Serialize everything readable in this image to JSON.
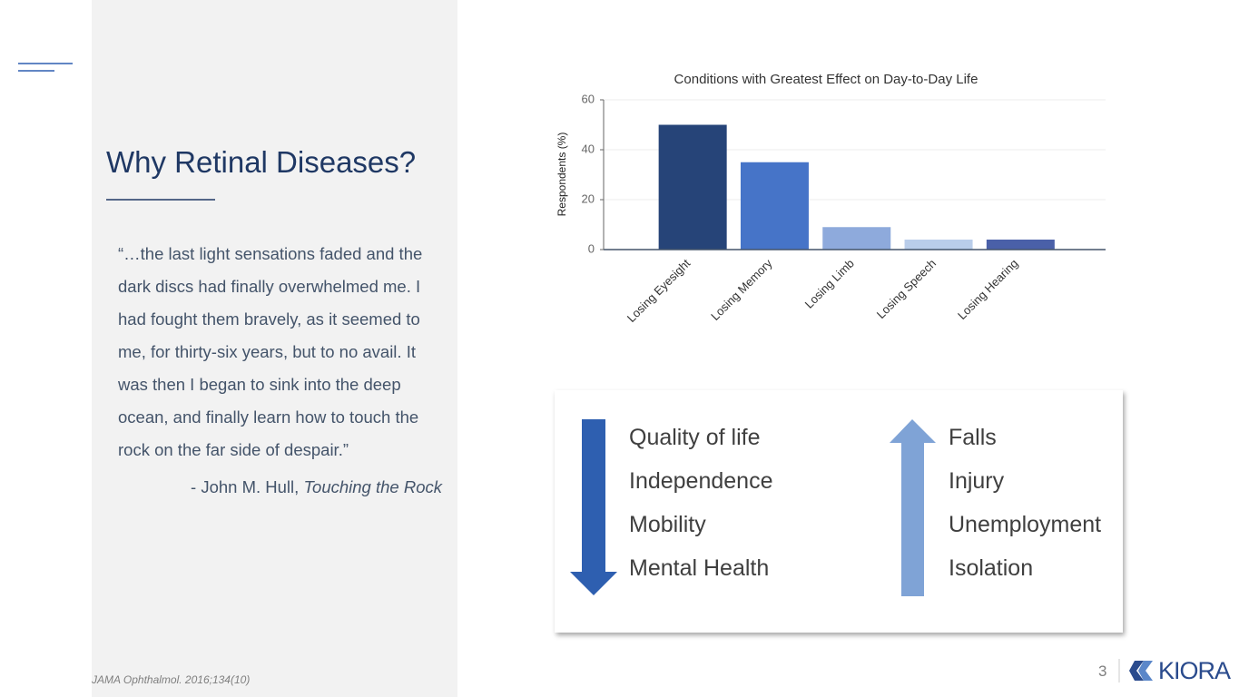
{
  "title": "Why Retinal Diseases?",
  "quote": "“…the last light sensations faded and the dark discs had finally overwhelmed me. I had fought them bravely, as it seemed to me, for thirty-six years, but to no avail. It was then I began to sink into the deep ocean, and finally learn how to touch the rock on the far side of despair.”",
  "attribution": {
    "author": "- John M. Hull, ",
    "book": "Touching the Rock"
  },
  "chart_data": {
    "type": "bar",
    "title": "Conditions with Greatest Effect on Day-to-Day Life",
    "y_label": "Respondents (%)",
    "categories": [
      "Losing Eyesight",
      "Losing Memory",
      "Losing Limb",
      "Losing Speech",
      "Losing Hearing"
    ],
    "values": [
      50,
      35,
      9,
      4,
      4
    ],
    "colors": [
      "#264478",
      "#4674c8",
      "#8eaadc",
      "#b9cdea",
      "#4a60a8"
    ],
    "ylim": [
      0,
      60
    ],
    "yticks": [
      0,
      20,
      40,
      60
    ],
    "grid": true
  },
  "decrease": [
    "Quality of life",
    "Independence",
    "Mobility",
    "Mental Health"
  ],
  "increase": [
    "Falls",
    "Injury",
    "Unemployment",
    "Isolation"
  ],
  "footer": {
    "source": "JAMA Ophthalmol. 2016;134(10)",
    "page": "3",
    "logo": "KIORA"
  }
}
